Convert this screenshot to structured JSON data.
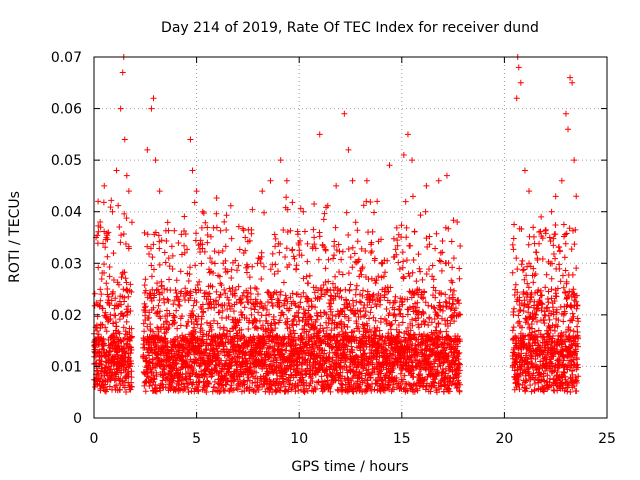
{
  "chart_data": {
    "type": "scatter",
    "title": "Day 214 of 2019, Rate Of TEC Index for receiver dund",
    "xlabel": "GPS time / hours",
    "ylabel": "ROTI / TECUs",
    "xlim": [
      0,
      25
    ],
    "ylim": [
      0,
      0.07
    ],
    "x_ticks": [
      "0",
      "5",
      "10",
      "15",
      "20",
      "25"
    ],
    "y_ticks": [
      "0",
      "0.01",
      "0.02",
      "0.03",
      "0.04",
      "0.05",
      "0.06",
      "0.07"
    ],
    "grid": true,
    "marker": "+",
    "color": "#ff0000",
    "series": [
      {
        "points": [
          [
            0.1,
            0.035
          ],
          [
            0.2,
            0.042
          ],
          [
            0.3,
            0.038
          ],
          [
            0.5,
            0.045
          ],
          [
            0.7,
            0.036
          ],
          [
            0.9,
            0.04
          ],
          [
            1.1,
            0.048
          ],
          [
            1.3,
            0.06
          ],
          [
            1.4,
            0.067
          ],
          [
            1.45,
            0.07
          ],
          [
            1.5,
            0.054
          ],
          [
            1.6,
            0.047
          ],
          [
            1.7,
            0.044
          ],
          [
            2.6,
            0.052
          ],
          [
            2.8,
            0.06
          ],
          [
            2.9,
            0.062
          ],
          [
            3.0,
            0.05
          ],
          [
            3.2,
            0.044
          ],
          [
            4.7,
            0.054
          ],
          [
            4.8,
            0.048
          ],
          [
            5.0,
            0.044
          ],
          [
            5.3,
            0.04
          ],
          [
            6.3,
            0.03
          ],
          [
            7.3,
            0.032
          ],
          [
            8.2,
            0.044
          ],
          [
            8.6,
            0.046
          ],
          [
            9.1,
            0.05
          ],
          [
            9.4,
            0.046
          ],
          [
            10.2,
            0.04
          ],
          [
            11.0,
            0.055
          ],
          [
            11.8,
            0.045
          ],
          [
            12.2,
            0.059
          ],
          [
            12.4,
            0.052
          ],
          [
            12.6,
            0.046
          ],
          [
            13.3,
            0.046
          ],
          [
            13.8,
            0.042
          ],
          [
            14.4,
            0.049
          ],
          [
            15.1,
            0.051
          ],
          [
            15.3,
            0.055
          ],
          [
            15.5,
            0.05
          ],
          [
            16.2,
            0.045
          ],
          [
            16.8,
            0.046
          ],
          [
            17.2,
            0.047
          ],
          [
            17.7,
            0.038
          ],
          [
            20.6,
            0.062
          ],
          [
            20.65,
            0.07
          ],
          [
            20.7,
            0.068
          ],
          [
            20.8,
            0.065
          ],
          [
            21.0,
            0.048
          ],
          [
            21.2,
            0.044
          ],
          [
            22.3,
            0.04
          ],
          [
            22.8,
            0.046
          ],
          [
            23.0,
            0.059
          ],
          [
            23.1,
            0.056
          ],
          [
            23.2,
            0.066
          ],
          [
            23.3,
            0.065
          ],
          [
            23.4,
            0.05
          ],
          [
            23.5,
            0.043
          ]
        ]
      }
    ]
  }
}
